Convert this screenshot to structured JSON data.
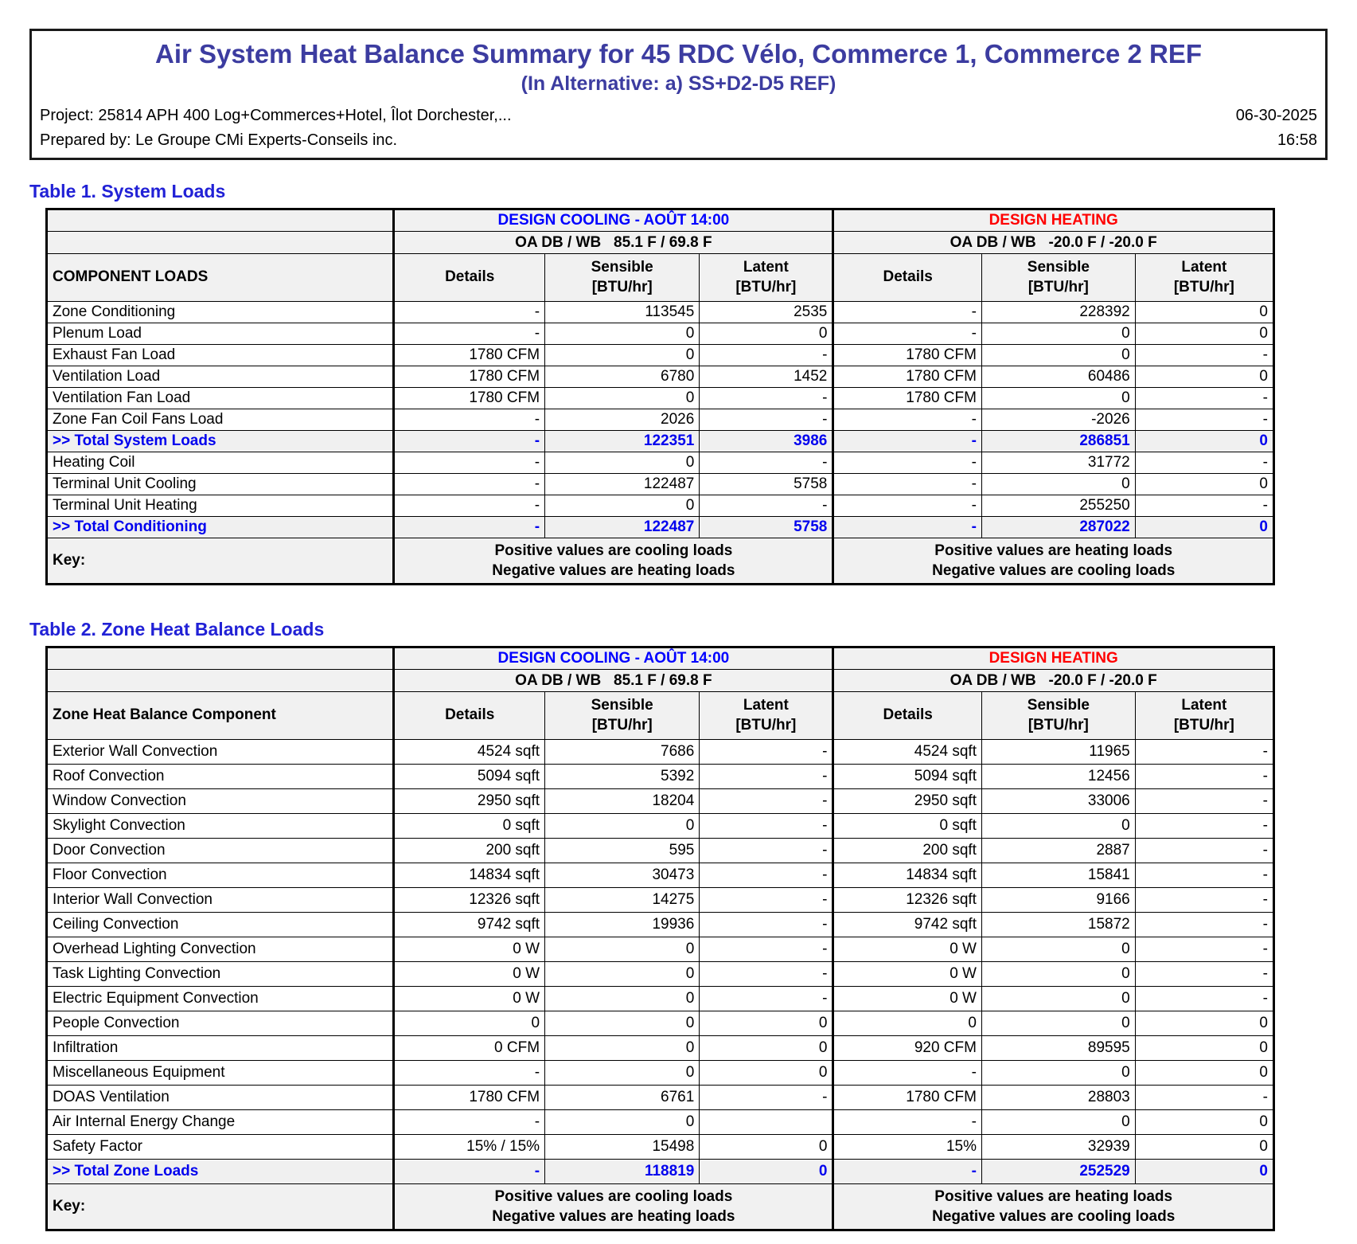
{
  "header": {
    "title": "Air System Heat Balance Summary for 45 RDC Vélo, Commerce 1, Commerce 2 REF",
    "subtitle": "(In Alternative: a) SS+D2-D5 REF)",
    "project": "Project: 25814 APH 400 Log+Commerces+Hotel, Îlot Dorchester,...",
    "date": "06-30-2025",
    "prepared_by": "Prepared by: Le Groupe CMi Experts-Conseils inc.",
    "time": "16:58"
  },
  "colors": {
    "doc_title": "#3C3CA0",
    "section_title": "#2121D6",
    "design_cooling": "#0000FF",
    "design_heating": "#FF0000",
    "total_row_text": "#0000EE",
    "shaded_row_bg": "#F1F1F1"
  },
  "tables": [
    {
      "title": "Table 1. System Loads",
      "component_header": "COMPONENT LOADS",
      "cooling_header": "DESIGN COOLING - AOÛT 14:00",
      "heating_header": "DESIGN HEATING",
      "cooling_oa": "OA DB / WB   85.1 F / 69.8 F",
      "heating_oa": "OA DB / WB   -20.0 F / -20.0 F",
      "col_headers": {
        "details": "Details",
        "sensible": "Sensible",
        "latent": "Latent",
        "unit": "[BTU/hr]"
      },
      "rows": [
        {
          "label": "Zone Conditioning",
          "cells": [
            "-",
            "113545",
            "2535",
            "-",
            "228392",
            "0"
          ],
          "total": false
        },
        {
          "label": "Plenum Load",
          "cells": [
            "-",
            "0",
            "0",
            "-",
            "0",
            "0"
          ],
          "total": false
        },
        {
          "label": "Exhaust Fan Load",
          "cells": [
            "1780 CFM",
            "0",
            "-",
            "1780 CFM",
            "0",
            "-"
          ],
          "total": false
        },
        {
          "label": "Ventilation Load",
          "cells": [
            "1780 CFM",
            "6780",
            "1452",
            "1780 CFM",
            "60486",
            "0"
          ],
          "total": false
        },
        {
          "label": "Ventilation Fan Load",
          "cells": [
            "1780 CFM",
            "0",
            "-",
            "1780 CFM",
            "0",
            "-"
          ],
          "total": false
        },
        {
          "label": "Zone Fan Coil Fans Load",
          "cells": [
            "-",
            "2026",
            "-",
            "-",
            "-2026",
            "-"
          ],
          "total": false
        },
        {
          "label": ">> Total System Loads",
          "cells": [
            "-",
            "122351",
            "3986",
            "-",
            "286851",
            "0"
          ],
          "total": true
        },
        {
          "label": "Heating Coil",
          "cells": [
            "-",
            "0",
            "-",
            "-",
            "31772",
            "-"
          ],
          "total": false
        },
        {
          "label": "Terminal Unit Cooling",
          "cells": [
            "-",
            "122487",
            "5758",
            "-",
            "0",
            "0"
          ],
          "total": false
        },
        {
          "label": "Terminal Unit Heating",
          "cells": [
            "-",
            "0",
            "-",
            "-",
            "255250",
            "-"
          ],
          "total": false
        },
        {
          "label": ">> Total Conditioning",
          "cells": [
            "-",
            "122487",
            "5758",
            "-",
            "287022",
            "0"
          ],
          "total": true
        }
      ],
      "key": {
        "label": "Key:",
        "cooling": [
          "Positive values are cooling loads",
          "Negative values are heating loads"
        ],
        "heating": [
          "Positive values are heating loads",
          "Negative values are cooling loads"
        ]
      }
    },
    {
      "title": "Table 2. Zone Heat Balance Loads",
      "component_header": "Zone Heat Balance Component",
      "cooling_header": "DESIGN COOLING - AOÛT 14:00",
      "heating_header": "DESIGN HEATING",
      "cooling_oa": "OA DB / WB   85.1 F / 69.8 F",
      "heating_oa": "OA DB / WB   -20.0 F / -20.0 F",
      "col_headers": {
        "details": "Details",
        "sensible": "Sensible",
        "latent": "Latent",
        "unit": "[BTU/hr]"
      },
      "rows": [
        {
          "label": "Exterior Wall Convection",
          "cells": [
            "4524 sqft",
            "7686",
            "-",
            "4524 sqft",
            "11965",
            "-"
          ],
          "total": false
        },
        {
          "label": "Roof Convection",
          "cells": [
            "5094 sqft",
            "5392",
            "-",
            "5094 sqft",
            "12456",
            "-"
          ],
          "total": false
        },
        {
          "label": "Window Convection",
          "cells": [
            "2950 sqft",
            "18204",
            "-",
            "2950 sqft",
            "33006",
            "-"
          ],
          "total": false
        },
        {
          "label": "Skylight Convection",
          "cells": [
            "0 sqft",
            "0",
            "-",
            "0 sqft",
            "0",
            "-"
          ],
          "total": false
        },
        {
          "label": "Door Convection",
          "cells": [
            "200 sqft",
            "595",
            "-",
            "200 sqft",
            "2887",
            "-"
          ],
          "total": false
        },
        {
          "label": "Floor Convection",
          "cells": [
            "14834 sqft",
            "30473",
            "-",
            "14834 sqft",
            "15841",
            "-"
          ],
          "total": false
        },
        {
          "label": "Interior Wall Convection",
          "cells": [
            "12326 sqft",
            "14275",
            "-",
            "12326 sqft",
            "9166",
            "-"
          ],
          "total": false
        },
        {
          "label": "Ceiling Convection",
          "cells": [
            "9742 sqft",
            "19936",
            "-",
            "9742 sqft",
            "15872",
            "-"
          ],
          "total": false
        },
        {
          "label": "Overhead Lighting Convection",
          "cells": [
            "0 W",
            "0",
            "-",
            "0 W",
            "0",
            "-"
          ],
          "total": false
        },
        {
          "label": "Task Lighting Convection",
          "cells": [
            "0 W",
            "0",
            "-",
            "0 W",
            "0",
            "-"
          ],
          "total": false
        },
        {
          "label": "Electric Equipment Convection",
          "cells": [
            "0 W",
            "0",
            "-",
            "0 W",
            "0",
            "-"
          ],
          "total": false
        },
        {
          "label": "People Convection",
          "cells": [
            "0",
            "0",
            "0",
            "0",
            "0",
            "0"
          ],
          "total": false
        },
        {
          "label": "Infiltration",
          "cells": [
            "0 CFM",
            "0",
            "0",
            "920 CFM",
            "89595",
            "0"
          ],
          "total": false
        },
        {
          "label": "Miscellaneous Equipment",
          "cells": [
            "-",
            "0",
            "0",
            "-",
            "0",
            "0"
          ],
          "total": false
        },
        {
          "label": "DOAS Ventilation",
          "cells": [
            "1780 CFM",
            "6761",
            "-",
            "1780 CFM",
            "28803",
            "-"
          ],
          "total": false
        },
        {
          "label": "Air Internal Energy Change",
          "cells": [
            "-",
            "0",
            "",
            "-",
            "0",
            "0"
          ],
          "total": false
        },
        {
          "label": "Safety Factor",
          "cells": [
            "15% / 15%",
            "15498",
            "0",
            "15%",
            "32939",
            "0"
          ],
          "total": false
        },
        {
          "label": ">> Total Zone Loads",
          "cells": [
            "-",
            "118819",
            "0",
            "-",
            "252529",
            "0"
          ],
          "total": true
        }
      ],
      "key": {
        "label": "Key:",
        "cooling": [
          "Positive values are cooling loads",
          "Negative values are heating loads"
        ],
        "heating": [
          "Positive values are heating loads",
          "Negative values are cooling loads"
        ]
      }
    }
  ]
}
